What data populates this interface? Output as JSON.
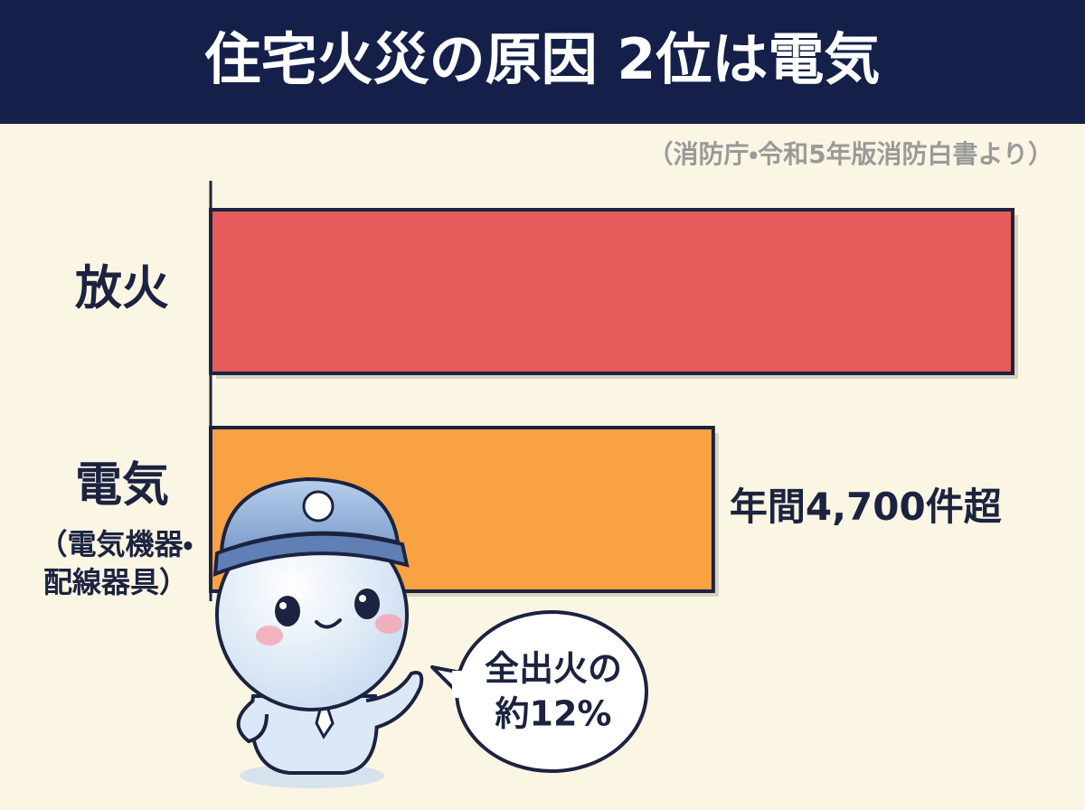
{
  "chart_data": {
    "type": "bar",
    "orientation": "horizontal",
    "title": "住宅火災の原因 2位は電気",
    "subtitle": "（消防庁・令和5年版消防白書より）",
    "categories": [
      "放火",
      "電気"
    ],
    "category_sublabels": [
      null,
      [
        "（電気機器・",
        "配線器具）"
      ]
    ],
    "values": [
      7500,
      4700
    ],
    "value_labels": [
      null,
      "年間4,700件超"
    ],
    "colors": [
      "#e65b5b",
      "#f8a244"
    ],
    "annotation": [
      "全出火の",
      "約12%"
    ]
  }
}
